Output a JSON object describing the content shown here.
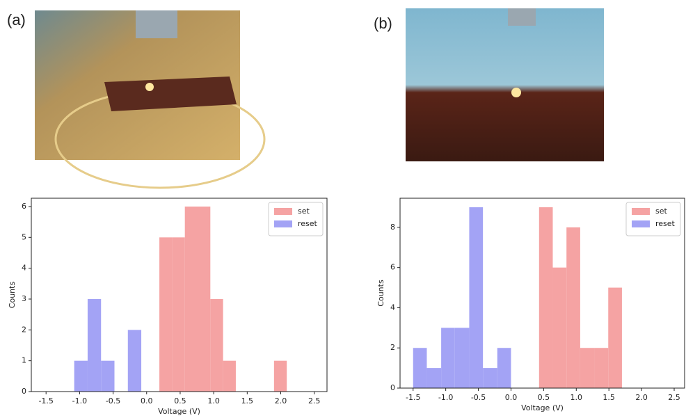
{
  "panel_labels": [
    "(a)",
    "(b)"
  ],
  "chart_data": [
    {
      "type": "histogram",
      "xlabel": "Voltage (V)",
      "ylabel": "Counts",
      "xlim": [
        -1.72,
        2.69
      ],
      "ylim": [
        0,
        6.27
      ],
      "xticks": [
        -1.5,
        {
          "value": -1.0,
          "label": "-1.0"
        },
        -0.5,
        {
          "value": 0.0,
          "label": "0.0"
        },
        0.5,
        {
          "value": 1.0,
          "label": "1.0"
        },
        1.5,
        {
          "value": 2.0,
          "label": "2.0"
        },
        2.5
      ],
      "yticks": [
        0,
        1,
        2,
        3,
        4,
        5,
        6
      ],
      "legend": "upper right",
      "series": [
        {
          "name": "set",
          "color": "#f5a3a3",
          "bins": [
            0.19,
            0.38,
            0.57,
            0.76,
            0.95,
            1.14,
            1.33,
            1.52,
            1.71,
            1.9,
            2.09
          ],
          "values": [
            5,
            5,
            6,
            6,
            3,
            1,
            0,
            0,
            0,
            1
          ]
        },
        {
          "name": "reset",
          "color": "#a3a3f5",
          "bins": [
            -1.08,
            -0.88,
            -0.68,
            -0.48,
            -0.28,
            -0.08
          ],
          "values": [
            1,
            3,
            1,
            0,
            2
          ]
        }
      ]
    },
    {
      "type": "histogram",
      "xlabel": "Voltage (V)",
      "ylabel": "Counts",
      "xlim": [
        -1.7,
        2.66
      ],
      "ylim": [
        0,
        9.45
      ],
      "xticks": [
        -1.5,
        {
          "value": -1.0,
          "label": "-1.0"
        },
        -0.5,
        {
          "value": 0.0,
          "label": "0.0"
        },
        0.5,
        {
          "value": 1.0,
          "label": "1.0"
        },
        1.5,
        {
          "value": 2.0,
          "label": "2.0"
        },
        2.5
      ],
      "yticks": [
        0,
        2,
        4,
        6,
        8
      ],
      "legend": "upper right",
      "series": [
        {
          "name": "set",
          "color": "#f5a3a3",
          "bins": [
            0.43,
            0.64,
            0.85,
            1.06,
            1.28,
            1.49,
            1.7
          ],
          "values": [
            9,
            6,
            8,
            2,
            2,
            5
          ]
        },
        {
          "name": "reset",
          "color": "#a3a3f5",
          "bins": [
            -1.5,
            -1.29,
            -1.07,
            -0.86,
            -0.64,
            -0.43,
            -0.21,
            0.0
          ],
          "values": [
            2,
            1,
            3,
            3,
            9,
            1,
            2
          ]
        }
      ]
    }
  ]
}
